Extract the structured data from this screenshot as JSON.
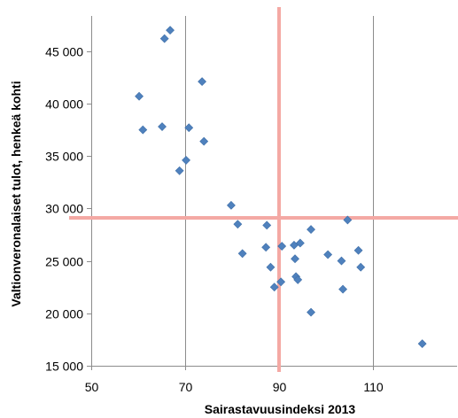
{
  "chart_data": {
    "type": "scatter",
    "xlabel": "Sairastavuusindeksi 2013",
    "ylabel": "Valtionveronalaiset tulot, henkeä kohti",
    "xlim": [
      50,
      130
    ],
    "ylim": [
      15000,
      47500
    ],
    "x_ticks": [
      50,
      70,
      90,
      110
    ],
    "x_tick_labels": [
      "50",
      "70",
      "90",
      "110"
    ],
    "y_ticks": [
      15000,
      20000,
      25000,
      30000,
      35000,
      40000,
      45000
    ],
    "y_tick_labels": [
      "15 000",
      "20 000",
      "25 000",
      "30 000",
      "35 000",
      "40 000",
      "45 000"
    ],
    "grid": "vertical major gridlines",
    "legend": "none",
    "marker_color": "#4f81bd",
    "reference_line_color": "#f4a9a4",
    "reference_lines": {
      "x": 90,
      "y": 29100
    },
    "series": [
      {
        "points": [
          [
            65.6,
            46200
          ],
          [
            66.8,
            47000
          ],
          [
            73.6,
            42100
          ],
          [
            60.2,
            40700
          ],
          [
            61.0,
            37500
          ],
          [
            65.1,
            37800
          ],
          [
            70.8,
            37700
          ],
          [
            74.0,
            36400
          ],
          [
            70.2,
            34600
          ],
          [
            68.8,
            33600
          ],
          [
            79.8,
            30300
          ],
          [
            81.2,
            28500
          ],
          [
            87.4,
            28400
          ],
          [
            82.2,
            25700
          ],
          [
            87.2,
            26300
          ],
          [
            88.2,
            24400
          ],
          [
            89.0,
            22500
          ],
          [
            90.4,
            23000
          ],
          [
            90.6,
            26400
          ],
          [
            93.2,
            26500
          ],
          [
            94.5,
            26700
          ],
          [
            93.4,
            25200
          ],
          [
            93.6,
            23500
          ],
          [
            94.0,
            23200
          ],
          [
            96.8,
            28000
          ],
          [
            96.8,
            20100
          ],
          [
            100.4,
            25600
          ],
          [
            103.3,
            25000
          ],
          [
            103.6,
            22300
          ],
          [
            104.6,
            28900
          ],
          [
            106.9,
            26000
          ],
          [
            107.4,
            24400
          ],
          [
            120.5,
            17100
          ]
        ]
      }
    ]
  }
}
